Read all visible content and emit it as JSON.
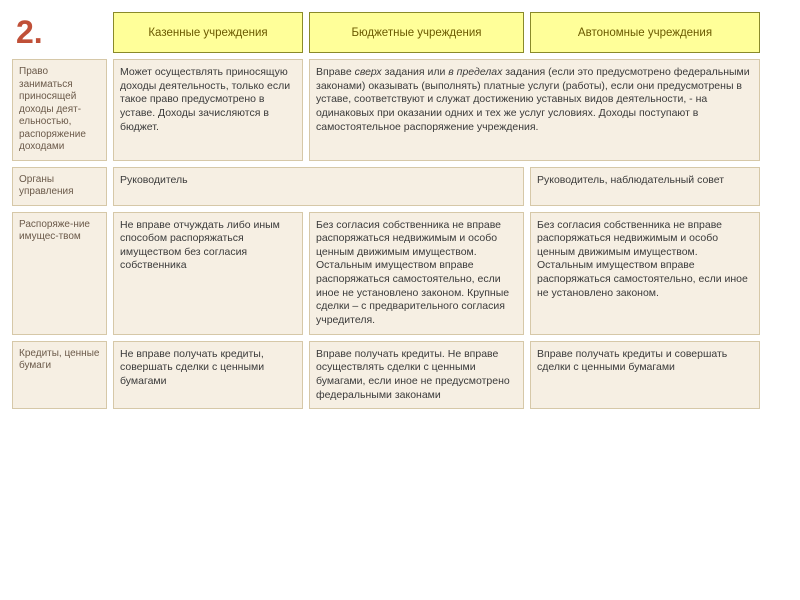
{
  "number": "2.",
  "headers": {
    "col1": "Казенные учреждения",
    "col2": "Бюджетные учреждения",
    "col3": "Автономные учреждения"
  },
  "rows": {
    "r1": {
      "label": "Право заниматься приносящей доходы деят-ельностью, распоряжение доходами",
      "c1": "Может осуществлять приносящую доходы деятельность, только если такое право предусмотрено в уставе. Доходы зачисляются в бюджет.",
      "c23_html": "Вправе <em>сверх</em> задания или <em>в пределах</em> задания (если это предусмотрено федеральными законами) оказывать (выполнять) платные услуги (работы), если они предусмотрены в уставе, соответствуют и служат достижению уставных видов деятельности, - на одинаковых при оказании одних и тех же услуг условиях. Доходы поступают в самостоятельное распоряжение учреждения."
    },
    "r2": {
      "label": "Органы управления",
      "c12": "Руководитель",
      "c3": "Руководитель, наблюдательный совет"
    },
    "r3": {
      "label": "Распоряже-ние имущес-твом",
      "c1": "Не вправе отчуждать либо иным способом распоряжаться имуществом без согласия собственника",
      "c2": "Без согласия собственника не вправе распоряжаться недвижимым и особо ценным движимым имуществом. Остальным имуществом вправе распоряжаться самостоятельно, если иное не установлено законом. Крупные сделки – с предварительного согласия учредителя.",
      "c3": "Без согласия собственника не вправе распоряжаться недвижимым и особо ценным движимым имуществом. Остальным имуществом вправе распоряжаться самостоятельно, если иное не установлено законом."
    },
    "r4": {
      "label": "Кредиты, ценные бумаги",
      "c1": "Не вправе получать кредиты, совершать сделки с ценными бумагами",
      "c2": "Вправе получать кредиты. Не вправе осуществлять сделки с ценными бумагами, если иное  не предусмотрено федеральными законами",
      "c3": "Вправе получать кредиты и совершать сделки с ценными бумагами"
    }
  },
  "colors": {
    "header_bg": "#ffff99",
    "header_border": "#8a8a2a",
    "cell_bg": "#f6efe3",
    "cell_border": "#d6c8a8",
    "number_color": "#c05038"
  }
}
